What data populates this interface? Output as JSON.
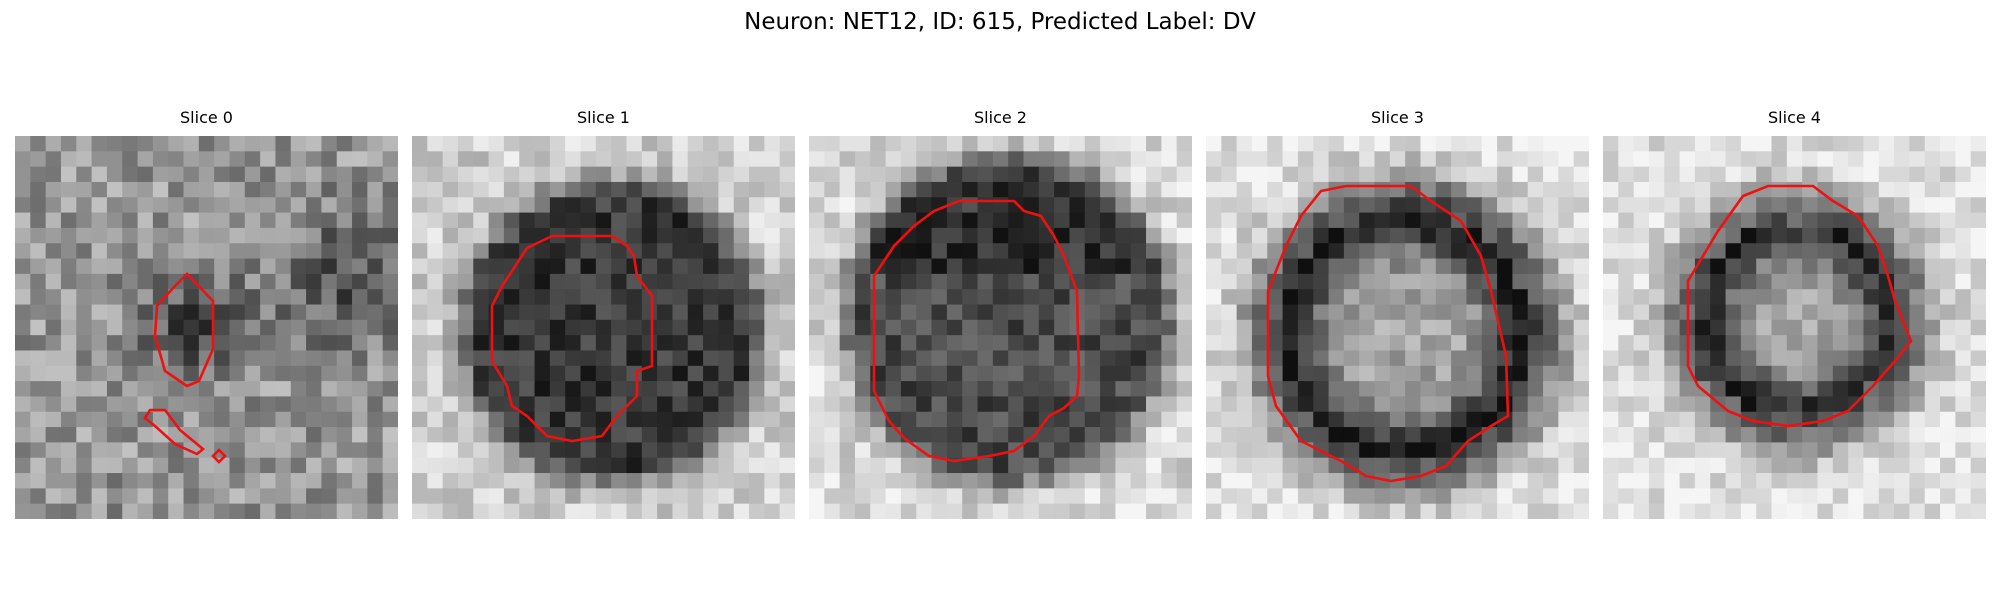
{
  "figure": {
    "title": "Neuron: NET12, ID: 615, Predicted Label: DV"
  },
  "contour_color": "#ee1111",
  "panels": [
    {
      "title": "Slice 0",
      "intensity_note": "grey noise background, small dark blob near centre-left"
    },
    {
      "title": "Slice 1",
      "intensity_note": "large dark roughly circular cell body"
    },
    {
      "title": "Slice 2",
      "intensity_note": "large dark cell body, darker top rim"
    },
    {
      "title": "Slice 3",
      "intensity_note": "dark ring with lighter interior"
    },
    {
      "title": "Slice 4",
      "intensity_note": "smaller dark ring with lighter interior"
    }
  ]
}
